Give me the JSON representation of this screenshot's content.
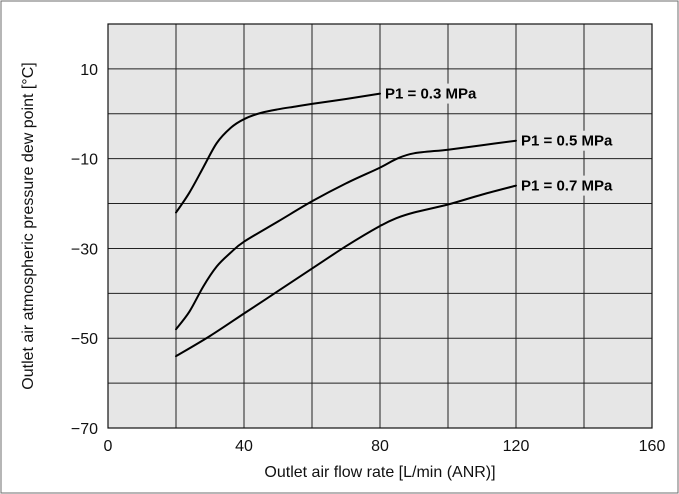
{
  "chart_data": {
    "type": "line",
    "xlabel": "Outlet air flow rate [L/min (ANR)]",
    "ylabel": "Outlet air atmospheric pressure dew point [°C]",
    "xlim": [
      0,
      160
    ],
    "ylim": [
      -70,
      20
    ],
    "x_ticks": [
      0,
      40,
      80,
      120,
      160
    ],
    "y_ticks": [
      -70,
      -50,
      -30,
      -10,
      10
    ],
    "x_grid": [
      0,
      20,
      40,
      60,
      80,
      100,
      120,
      140,
      160
    ],
    "y_grid": [
      -70,
      -60,
      -50,
      -40,
      -30,
      -20,
      -10,
      0,
      10,
      20
    ],
    "grid": true,
    "plot_background": "#e6e6e6",
    "line_color": "#000000",
    "series": [
      {
        "name": "P1 = 0.3 MPa",
        "x": [
          20,
          24,
          28,
          32,
          36,
          40,
          45,
          50,
          55,
          60,
          70,
          80
        ],
        "y": [
          -22,
          -17.5,
          -12,
          -6.5,
          -3.2,
          -1.2,
          0.2,
          1.0,
          1.6,
          2.2,
          3.3,
          4.5
        ]
      },
      {
        "name": "P1 = 0.5 MPa",
        "x": [
          20,
          24,
          28,
          32,
          36,
          40,
          50,
          60,
          70,
          80,
          85,
          90,
          100,
          110,
          120
        ],
        "y": [
          -48,
          -44,
          -38.5,
          -34,
          -31,
          -28.5,
          -24,
          -19.5,
          -15.5,
          -12,
          -10,
          -8.8,
          -8,
          -7,
          -6
        ]
      },
      {
        "name": "P1 = 0.7 MPa",
        "x": [
          20,
          30,
          40,
          50,
          60,
          70,
          80,
          85,
          90,
          100,
          110,
          120
        ],
        "y": [
          -54,
          -49.5,
          -44.5,
          -39.5,
          -34.5,
          -29.5,
          -25,
          -23.2,
          -22,
          -20.2,
          -18,
          -16
        ]
      }
    ]
  }
}
